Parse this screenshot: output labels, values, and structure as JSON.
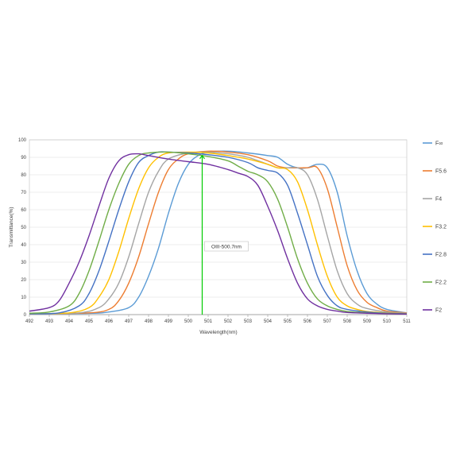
{
  "chart_data": {
    "type": "line",
    "title": "",
    "xlabel": "Wavelength(nm)",
    "ylabel": "Transmittance(%)",
    "xlim": [
      492,
      511
    ],
    "ylim": [
      0,
      100
    ],
    "x_ticks": [
      492,
      493,
      494,
      495,
      496,
      497,
      498,
      499,
      500,
      501,
      502,
      503,
      504,
      505,
      506,
      507,
      508,
      509,
      510,
      511
    ],
    "y_ticks": [
      0,
      10,
      20,
      30,
      40,
      50,
      60,
      70,
      80,
      90,
      100
    ],
    "grid": "horizontal",
    "legend_position": "right",
    "series": [
      {
        "name": "F∞",
        "color": "#5b9bd5",
        "points": [
          [
            492,
            0.5
          ],
          [
            495,
            0.7
          ],
          [
            496,
            1.5
          ],
          [
            497,
            4
          ],
          [
            497.5,
            10
          ],
          [
            498,
            22
          ],
          [
            498.5,
            38
          ],
          [
            499,
            58
          ],
          [
            499.5,
            75
          ],
          [
            500,
            86
          ],
          [
            500.5,
            91
          ],
          [
            501,
            93
          ],
          [
            502,
            93.5
          ],
          [
            503,
            92.5
          ],
          [
            504,
            91
          ],
          [
            504.5,
            90
          ],
          [
            505,
            86
          ],
          [
            505.5,
            84
          ],
          [
            506,
            84
          ],
          [
            506.5,
            86
          ],
          [
            507,
            84
          ],
          [
            507.5,
            70
          ],
          [
            508,
            45
          ],
          [
            508.5,
            25
          ],
          [
            509,
            12
          ],
          [
            509.5,
            6
          ],
          [
            510,
            3
          ],
          [
            511,
            1
          ]
        ]
      },
      {
        "name": "F5.6",
        "color": "#ed7d31",
        "points": [
          [
            492,
            0.5
          ],
          [
            495,
            1
          ],
          [
            496,
            3
          ],
          [
            496.5,
            8
          ],
          [
            497,
            18
          ],
          [
            497.5,
            33
          ],
          [
            498,
            52
          ],
          [
            498.5,
            70
          ],
          [
            499,
            83
          ],
          [
            499.5,
            89
          ],
          [
            500,
            92
          ],
          [
            501,
            93.5
          ],
          [
            502,
            93
          ],
          [
            503,
            91.5
          ],
          [
            504,
            88
          ],
          [
            504.5,
            85
          ],
          [
            505,
            84
          ],
          [
            506,
            84
          ],
          [
            506.5,
            84
          ],
          [
            507,
            72
          ],
          [
            507.5,
            50
          ],
          [
            508,
            28
          ],
          [
            508.5,
            14
          ],
          [
            509,
            7
          ],
          [
            509.5,
            4
          ],
          [
            510,
            2
          ],
          [
            511,
            1
          ]
        ]
      },
      {
        "name": "F4",
        "color": "#a5a5a5",
        "points": [
          [
            492,
            0.5
          ],
          [
            494.5,
            1
          ],
          [
            495.5,
            4
          ],
          [
            496,
            9
          ],
          [
            496.5,
            18
          ],
          [
            497,
            33
          ],
          [
            497.5,
            52
          ],
          [
            498,
            70
          ],
          [
            498.5,
            82
          ],
          [
            499,
            89
          ],
          [
            500,
            92.5
          ],
          [
            501,
            93
          ],
          [
            502,
            92
          ],
          [
            503,
            90
          ],
          [
            504,
            86
          ],
          [
            504.5,
            84
          ],
          [
            505,
            84
          ],
          [
            505.5,
            84
          ],
          [
            506,
            80
          ],
          [
            506.5,
            66
          ],
          [
            507,
            45
          ],
          [
            507.5,
            25
          ],
          [
            508,
            12
          ],
          [
            508.5,
            6
          ],
          [
            509,
            3.5
          ],
          [
            510,
            1.5
          ],
          [
            511,
            0.8
          ]
        ]
      },
      {
        "name": "F3.2",
        "color": "#ffc000",
        "points": [
          [
            492,
            0.5
          ],
          [
            494,
            1
          ],
          [
            495,
            4
          ],
          [
            495.5,
            10
          ],
          [
            496,
            20
          ],
          [
            496.5,
            36
          ],
          [
            497,
            55
          ],
          [
            497.5,
            72
          ],
          [
            498,
            84
          ],
          [
            498.5,
            90
          ],
          [
            499,
            92.5
          ],
          [
            500,
            93
          ],
          [
            501,
            92.5
          ],
          [
            502,
            91
          ],
          [
            503,
            89
          ],
          [
            504,
            86
          ],
          [
            504.5,
            84
          ],
          [
            505,
            83
          ],
          [
            505.5,
            76
          ],
          [
            506,
            60
          ],
          [
            506.5,
            40
          ],
          [
            507,
            22
          ],
          [
            507.5,
            10
          ],
          [
            508,
            5
          ],
          [
            508.5,
            3
          ],
          [
            509,
            1.8
          ],
          [
            510,
            1
          ],
          [
            511,
            0.5
          ]
        ]
      },
      {
        "name": "F2.8",
        "color": "#4472c4",
        "points": [
          [
            492,
            0.5
          ],
          [
            493.5,
            1
          ],
          [
            494.5,
            5
          ],
          [
            495,
            12
          ],
          [
            495.5,
            25
          ],
          [
            496,
            42
          ],
          [
            496.5,
            60
          ],
          [
            497,
            76
          ],
          [
            497.5,
            87
          ],
          [
            498,
            91
          ],
          [
            498.5,
            93
          ],
          [
            499,
            93
          ],
          [
            500,
            92.5
          ],
          [
            501,
            91.5
          ],
          [
            502,
            90
          ],
          [
            503,
            87
          ],
          [
            503.5,
            84
          ],
          [
            504,
            82.5
          ],
          [
            504.5,
            81
          ],
          [
            505,
            74
          ],
          [
            505.5,
            58
          ],
          [
            506,
            40
          ],
          [
            506.5,
            22
          ],
          [
            507,
            11
          ],
          [
            507.5,
            5
          ],
          [
            508,
            3
          ],
          [
            509,
            1.5
          ],
          [
            510,
            0.8
          ],
          [
            511,
            0.5
          ]
        ]
      },
      {
        "name": "F2.2",
        "color": "#70ad47",
        "points": [
          [
            492,
            0.8
          ],
          [
            493,
            1.5
          ],
          [
            494,
            5
          ],
          [
            494.5,
            12
          ],
          [
            495,
            25
          ],
          [
            495.5,
            42
          ],
          [
            496,
            60
          ],
          [
            496.5,
            75
          ],
          [
            497,
            86
          ],
          [
            497.5,
            91
          ],
          [
            498,
            92.5
          ],
          [
            499,
            93
          ],
          [
            500,
            92
          ],
          [
            501,
            90.5
          ],
          [
            502,
            88
          ],
          [
            502.5,
            85
          ],
          [
            503,
            82
          ],
          [
            503.5,
            80
          ],
          [
            504,
            76
          ],
          [
            504.5,
            66
          ],
          [
            505,
            50
          ],
          [
            505.5,
            32
          ],
          [
            506,
            18
          ],
          [
            506.5,
            9
          ],
          [
            507,
            5
          ],
          [
            507.5,
            3
          ],
          [
            508,
            1.8
          ],
          [
            509,
            1
          ],
          [
            510,
            0.6
          ],
          [
            511,
            0.4
          ]
        ]
      },
      {
        "name": "F2",
        "color": "#7030a0",
        "points": [
          [
            492,
            2
          ],
          [
            493,
            4
          ],
          [
            493.5,
            8
          ],
          [
            494,
            18
          ],
          [
            494.5,
            30
          ],
          [
            495,
            45
          ],
          [
            495.5,
            62
          ],
          [
            496,
            78
          ],
          [
            496.5,
            88
          ],
          [
            497,
            91.5
          ],
          [
            497.5,
            92
          ],
          [
            498,
            91
          ],
          [
            499,
            89
          ],
          [
            500,
            87.5
          ],
          [
            501,
            86
          ],
          [
            502,
            83
          ],
          [
            502.5,
            81
          ],
          [
            503,
            79
          ],
          [
            503.5,
            74
          ],
          [
            504,
            62
          ],
          [
            504.5,
            48
          ],
          [
            505,
            32
          ],
          [
            505.5,
            18
          ],
          [
            506,
            9
          ],
          [
            506.5,
            5
          ],
          [
            507,
            3
          ],
          [
            507.5,
            2
          ],
          [
            508,
            1.2
          ],
          [
            509,
            0.8
          ],
          [
            510,
            0.5
          ],
          [
            511,
            0.3
          ]
        ]
      }
    ],
    "annotations": [
      {
        "text": "OIII-500.7nm",
        "x": 500.7,
        "color": "#00cc00"
      }
    ]
  }
}
